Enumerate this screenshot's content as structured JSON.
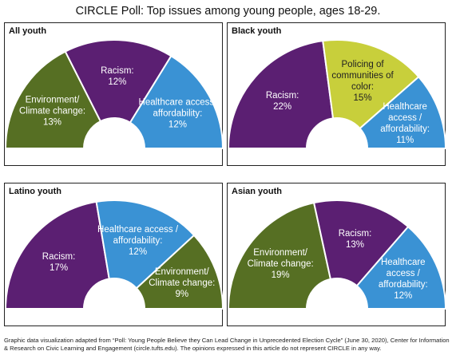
{
  "title": "CIRCLE Poll: Top issues among young people, ages 18-29.",
  "footnote": "Graphic data visualization adapted from “Poll: Young People Believe they Can Lead Change in Unprecedented Election Cycle” (June 30, 2020), Center for Information & Research on Civic Learning and Engagement (circle.tufts.edu). The opinions expressed in this article do not represent CIRCLE in any way.",
  "colors": {
    "purple": "#5b1f72",
    "green": "#566f23",
    "blue": "#3a92d4",
    "yellow": "#c8cf3b"
  },
  "chart_data": [
    {
      "type": "pie",
      "title": "All youth",
      "slices": [
        {
          "lines": [
            "Environment/",
            "Climate change:",
            "13%"
          ],
          "value": 13,
          "color": "green"
        },
        {
          "lines": [
            "Racism:",
            "12%"
          ],
          "value": 12,
          "color": "purple"
        },
        {
          "lines": [
            "Healthcare access/",
            "affordability:",
            "12%"
          ],
          "value": 12,
          "color": "blue"
        }
      ]
    },
    {
      "type": "pie",
      "title": "Black youth",
      "slices": [
        {
          "lines": [
            "Racism:",
            "22%"
          ],
          "value": 22,
          "color": "purple"
        },
        {
          "lines": [
            "Policing of",
            "communities of",
            "color:",
            "15%"
          ],
          "value": 15,
          "color": "yellow"
        },
        {
          "lines": [
            "Healthcare",
            "access /",
            "affordability:",
            "11%"
          ],
          "value": 11,
          "color": "blue"
        }
      ]
    },
    {
      "type": "pie",
      "title": "Latino youth",
      "slices": [
        {
          "lines": [
            "Racism:",
            "17%"
          ],
          "value": 17,
          "color": "purple"
        },
        {
          "lines": [
            "Healthcare access /",
            "affordability:",
            "12%"
          ],
          "value": 12,
          "color": "blue"
        },
        {
          "lines": [
            "Environment/",
            "Climate change:",
            "9%"
          ],
          "value": 9,
          "color": "green"
        }
      ]
    },
    {
      "type": "pie",
      "title": "Asian youth",
      "slices": [
        {
          "lines": [
            "Environment/",
            "Climate change:",
            "19%"
          ],
          "value": 19,
          "color": "green"
        },
        {
          "lines": [
            "Racism:",
            "13%"
          ],
          "value": 13,
          "color": "purple"
        },
        {
          "lines": [
            "Healthcare",
            "access /",
            "affordability:",
            "12%"
          ],
          "value": 12,
          "color": "blue"
        }
      ]
    }
  ]
}
